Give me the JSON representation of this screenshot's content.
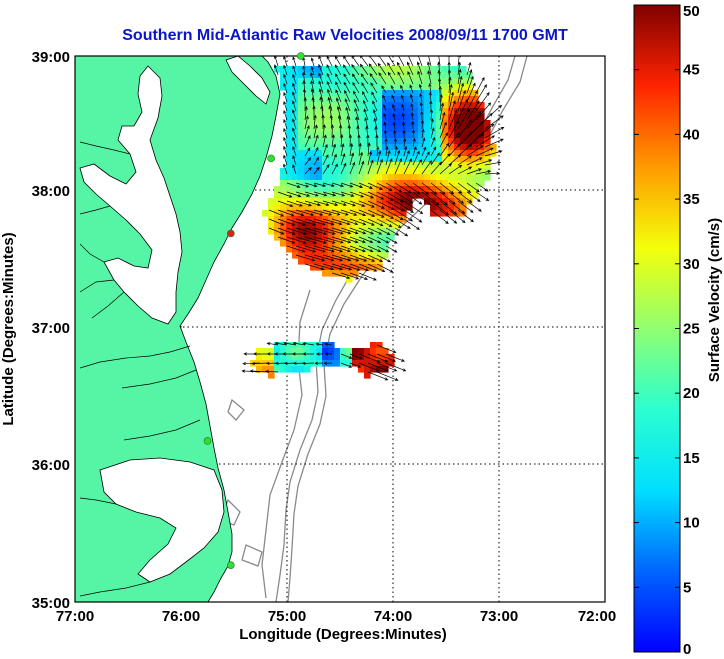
{
  "title": "Southern Mid-Atlantic Raw Velocities 2008/09/11 1700 GMT",
  "xlabel": "Longitude (Degrees:Minutes)",
  "ylabel": "Latitude (Degrees:Minutes)",
  "x_ticks": [
    "77:00",
    "76:00",
    "75:00",
    "74:00",
    "73:00",
    "72:00"
  ],
  "y_ticks": [
    "39:00",
    "38:00",
    "37:00",
    "36:00",
    "35:00"
  ],
  "colorbar": {
    "label": "Surface Velocity (cm/s)",
    "ticks": [
      "0",
      "5",
      "10",
      "15",
      "20",
      "25",
      "30",
      "35",
      "40",
      "45",
      "50"
    ],
    "min": 0,
    "max": 50,
    "colormap": "jet"
  },
  "map": {
    "lon_range": [
      -77,
      -72
    ],
    "lat_range": [
      35,
      39
    ],
    "land_color": "#55f5a5",
    "grid": "dotted",
    "stations": [
      {
        "lon": -74.87,
        "lat": 39.0,
        "color": "#33dd33"
      },
      {
        "lon": -75.15,
        "lat": 38.25,
        "color": "#33dd33"
      },
      {
        "lon": -75.53,
        "lat": 37.7,
        "color": "#e02020"
      },
      {
        "lon": -75.75,
        "lat": 36.18,
        "color": "#33dd33"
      },
      {
        "lon": -75.53,
        "lat": 35.27,
        "color": "#33dd33"
      }
    ]
  }
}
